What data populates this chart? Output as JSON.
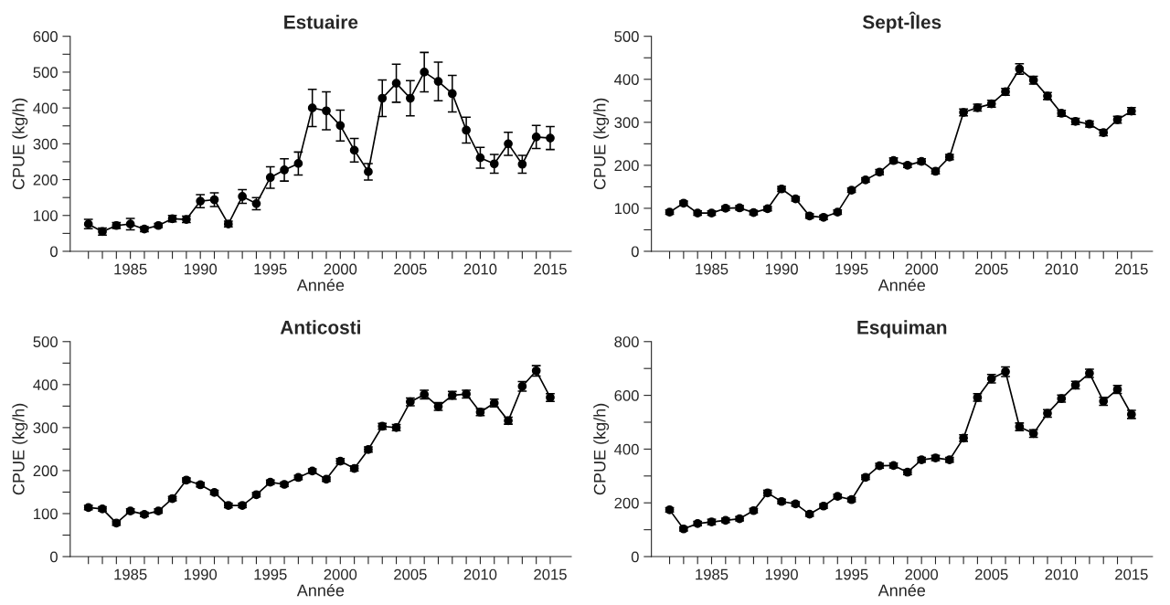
{
  "chart_data": [
    {
      "type": "line",
      "title": "Estuaire",
      "xlabel": "Année",
      "ylabel": "CPUE (kg/h)",
      "marker": "circle",
      "grid": false,
      "x": [
        1982,
        1983,
        1984,
        1985,
        1986,
        1987,
        1988,
        1989,
        1990,
        1991,
        1992,
        1993,
        1994,
        1995,
        1996,
        1997,
        1998,
        1999,
        2000,
        2001,
        2002,
        2003,
        2004,
        2005,
        2006,
        2007,
        2008,
        2009,
        2010,
        2011,
        2012,
        2013,
        2014,
        2015
      ],
      "series": [
        {
          "color": "#000000",
          "values": [
            76,
            55,
            72,
            76,
            62,
            72,
            91,
            89,
            140,
            144,
            76,
            153,
            133,
            206,
            227,
            245,
            400,
            392,
            351,
            282,
            222,
            427,
            469,
            427,
            500,
            474,
            440,
            338,
            261,
            244,
            300,
            243,
            319,
            316
          ],
          "errors": [
            13,
            10,
            8,
            16,
            7,
            6,
            9,
            9,
            18,
            19,
            8,
            19,
            17,
            30,
            31,
            32,
            52,
            53,
            43,
            33,
            23,
            51,
            53,
            49,
            55,
            54,
            51,
            36,
            29,
            26,
            32,
            25,
            32,
            32
          ]
        }
      ],
      "xlim": [
        1980.7,
        2016.5
      ],
      "xticks": [
        {
          "value": 1982,
          "label": null
        },
        {
          "value": 1983,
          "label": null
        },
        {
          "value": 1984,
          "label": null
        },
        1985,
        {
          "value": 1986,
          "label": null
        },
        {
          "value": 1987,
          "label": null
        },
        {
          "value": 1988,
          "label": null
        },
        {
          "value": 1989,
          "label": null
        },
        1990,
        {
          "value": 1991,
          "label": null
        },
        {
          "value": 1992,
          "label": null
        },
        {
          "value": 1993,
          "label": null
        },
        {
          "value": 1994,
          "label": null
        },
        1995,
        {
          "value": 1996,
          "label": null
        },
        {
          "value": 1997,
          "label": null
        },
        {
          "value": 1998,
          "label": null
        },
        {
          "value": 1999,
          "label": null
        },
        2000,
        {
          "value": 2001,
          "label": null
        },
        {
          "value": 2002,
          "label": null
        },
        {
          "value": 2003,
          "label": null
        },
        {
          "value": 2004,
          "label": null
        },
        2005,
        {
          "value": 2006,
          "label": null
        },
        {
          "value": 2007,
          "label": null
        },
        {
          "value": 2008,
          "label": null
        },
        {
          "value": 2009,
          "label": null
        },
        2010,
        {
          "value": 2011,
          "label": null
        },
        {
          "value": 2012,
          "label": null
        },
        {
          "value": 2013,
          "label": null
        },
        {
          "value": 2014,
          "label": null
        },
        2015
      ],
      "ylim": [
        0,
        600
      ],
      "yticks": [
        0,
        {
          "value": 50,
          "label": null
        },
        100,
        {
          "value": 150,
          "label": null
        },
        200,
        {
          "value": 250,
          "label": null
        },
        300,
        {
          "value": 350,
          "label": null
        },
        400,
        {
          "value": 450,
          "label": null
        },
        500,
        {
          "value": 550,
          "label": null
        },
        600
      ]
    },
    {
      "type": "line",
      "title": "Sept-Îles",
      "xlabel": "Année",
      "ylabel": "CPUE (kg/h)",
      "marker": "circle",
      "grid": false,
      "x": [
        1982,
        1983,
        1984,
        1985,
        1986,
        1987,
        1988,
        1989,
        1990,
        1991,
        1992,
        1993,
        1994,
        1995,
        1996,
        1997,
        1998,
        1999,
        2000,
        2001,
        2002,
        2003,
        2004,
        2005,
        2006,
        2007,
        2008,
        2009,
        2010,
        2011,
        2012,
        2013,
        2014,
        2015
      ],
      "series": [
        {
          "color": "#000000",
          "values": [
            91,
            112,
            89,
            89,
            100,
            101,
            90,
            99,
            145,
            122,
            82,
            79,
            91,
            142,
            166,
            184,
            211,
            200,
            209,
            186,
            219,
            323,
            334,
            343,
            371,
            424,
            398,
            361,
            321,
            302,
            296,
            276,
            306,
            326
          ],
          "errors": [
            5,
            5,
            5,
            5,
            5,
            5,
            5,
            5,
            6,
            5,
            5,
            5,
            5,
            5,
            5,
            6,
            6,
            5,
            6,
            6,
            6,
            8,
            8,
            8,
            8,
            12,
            9,
            8,
            7,
            7,
            7,
            7,
            8,
            8
          ]
        }
      ],
      "xlim": [
        1980.7,
        2016.5
      ],
      "xticks": [
        {
          "value": 1982,
          "label": null
        },
        {
          "value": 1983,
          "label": null
        },
        {
          "value": 1984,
          "label": null
        },
        1985,
        {
          "value": 1986,
          "label": null
        },
        {
          "value": 1987,
          "label": null
        },
        {
          "value": 1988,
          "label": null
        },
        {
          "value": 1989,
          "label": null
        },
        1990,
        {
          "value": 1991,
          "label": null
        },
        {
          "value": 1992,
          "label": null
        },
        {
          "value": 1993,
          "label": null
        },
        {
          "value": 1994,
          "label": null
        },
        1995,
        {
          "value": 1996,
          "label": null
        },
        {
          "value": 1997,
          "label": null
        },
        {
          "value": 1998,
          "label": null
        },
        {
          "value": 1999,
          "label": null
        },
        2000,
        {
          "value": 2001,
          "label": null
        },
        {
          "value": 2002,
          "label": null
        },
        {
          "value": 2003,
          "label": null
        },
        {
          "value": 2004,
          "label": null
        },
        2005,
        {
          "value": 2006,
          "label": null
        },
        {
          "value": 2007,
          "label": null
        },
        {
          "value": 2008,
          "label": null
        },
        {
          "value": 2009,
          "label": null
        },
        2010,
        {
          "value": 2011,
          "label": null
        },
        {
          "value": 2012,
          "label": null
        },
        {
          "value": 2013,
          "label": null
        },
        {
          "value": 2014,
          "label": null
        },
        2015
      ],
      "ylim": [
        0,
        500
      ],
      "yticks": [
        0,
        {
          "value": 50,
          "label": null
        },
        100,
        {
          "value": 150,
          "label": null
        },
        200,
        {
          "value": 250,
          "label": null
        },
        300,
        {
          "value": 350,
          "label": null
        },
        400,
        {
          "value": 450,
          "label": null
        },
        500
      ]
    },
    {
      "type": "line",
      "title": "Anticosti",
      "xlabel": "Année",
      "ylabel": "CPUE (kg/h)",
      "marker": "circle",
      "grid": false,
      "x": [
        1982,
        1983,
        1984,
        1985,
        1986,
        1987,
        1988,
        1989,
        1990,
        1991,
        1992,
        1993,
        1994,
        1995,
        1996,
        1997,
        1998,
        1999,
        2000,
        2001,
        2002,
        2003,
        2004,
        2005,
        2006,
        2007,
        2008,
        2009,
        2010,
        2011,
        2012,
        2013,
        2014,
        2015
      ],
      "series": [
        {
          "color": "#000000",
          "values": [
            114,
            111,
            78,
            106,
            98,
            106,
            135,
            178,
            167,
            149,
            119,
            119,
            144,
            173,
            168,
            184,
            199,
            180,
            222,
            205,
            249,
            303,
            300,
            360,
            377,
            349,
            375,
            378,
            336,
            357,
            316,
            396,
            432,
            370
          ],
          "errors": [
            5,
            5,
            5,
            5,
            5,
            5,
            5,
            5,
            5,
            5,
            5,
            5,
            5,
            5,
            5,
            5,
            5,
            5,
            6,
            6,
            6,
            7,
            7,
            9,
            10,
            9,
            9,
            9,
            8,
            9,
            8,
            11,
            12,
            9
          ]
        }
      ],
      "xlim": [
        1980.7,
        2016.5
      ],
      "xticks": [
        {
          "value": 1982,
          "label": null
        },
        {
          "value": 1983,
          "label": null
        },
        {
          "value": 1984,
          "label": null
        },
        1985,
        {
          "value": 1986,
          "label": null
        },
        {
          "value": 1987,
          "label": null
        },
        {
          "value": 1988,
          "label": null
        },
        {
          "value": 1989,
          "label": null
        },
        1990,
        {
          "value": 1991,
          "label": null
        },
        {
          "value": 1992,
          "label": null
        },
        {
          "value": 1993,
          "label": null
        },
        {
          "value": 1994,
          "label": null
        },
        1995,
        {
          "value": 1996,
          "label": null
        },
        {
          "value": 1997,
          "label": null
        },
        {
          "value": 1998,
          "label": null
        },
        {
          "value": 1999,
          "label": null
        },
        2000,
        {
          "value": 2001,
          "label": null
        },
        {
          "value": 2002,
          "label": null
        },
        {
          "value": 2003,
          "label": null
        },
        {
          "value": 2004,
          "label": null
        },
        2005,
        {
          "value": 2006,
          "label": null
        },
        {
          "value": 2007,
          "label": null
        },
        {
          "value": 2008,
          "label": null
        },
        {
          "value": 2009,
          "label": null
        },
        2010,
        {
          "value": 2011,
          "label": null
        },
        {
          "value": 2012,
          "label": null
        },
        {
          "value": 2013,
          "label": null
        },
        {
          "value": 2014,
          "label": null
        },
        2015
      ],
      "ylim": [
        0,
        500
      ],
      "yticks": [
        0,
        {
          "value": 50,
          "label": null
        },
        100,
        {
          "value": 150,
          "label": null
        },
        200,
        {
          "value": 250,
          "label": null
        },
        300,
        {
          "value": 350,
          "label": null
        },
        400,
        {
          "value": 450,
          "label": null
        },
        500
      ]
    },
    {
      "type": "line",
      "title": "Esquiman",
      "xlabel": "Année",
      "ylabel": "CPUE (kg/h)",
      "marker": "circle",
      "grid": false,
      "x": [
        1982,
        1983,
        1984,
        1985,
        1986,
        1987,
        1988,
        1989,
        1990,
        1991,
        1992,
        1993,
        1994,
        1995,
        1996,
        1997,
        1998,
        1999,
        2000,
        2001,
        2002,
        2003,
        2004,
        2005,
        2006,
        2007,
        2008,
        2009,
        2010,
        2011,
        2012,
        2013,
        2014,
        2015
      ],
      "series": [
        {
          "color": "#000000",
          "values": [
            174,
            103,
            123,
            129,
            135,
            141,
            171,
            237,
            205,
            196,
            158,
            188,
            224,
            212,
            295,
            338,
            339,
            314,
            360,
            367,
            360,
            441,
            592,
            662,
            688,
            483,
            458,
            533,
            588,
            638,
            682,
            578,
            622,
            529
          ],
          "errors": [
            8,
            8,
            8,
            10,
            8,
            8,
            8,
            10,
            8,
            8,
            8,
            8,
            8,
            8,
            8,
            9,
            9,
            9,
            9,
            10,
            9,
            12,
            14,
            16,
            18,
            14,
            14,
            14,
            13,
            14,
            15,
            15,
            15,
            15
          ]
        }
      ],
      "xlim": [
        1980.7,
        2016.5
      ],
      "xticks": [
        {
          "value": 1982,
          "label": null
        },
        {
          "value": 1983,
          "label": null
        },
        {
          "value": 1984,
          "label": null
        },
        1985,
        {
          "value": 1986,
          "label": null
        },
        {
          "value": 1987,
          "label": null
        },
        {
          "value": 1988,
          "label": null
        },
        {
          "value": 1989,
          "label": null
        },
        1990,
        {
          "value": 1991,
          "label": null
        },
        {
          "value": 1992,
          "label": null
        },
        {
          "value": 1993,
          "label": null
        },
        {
          "value": 1994,
          "label": null
        },
        1995,
        {
          "value": 1996,
          "label": null
        },
        {
          "value": 1997,
          "label": null
        },
        {
          "value": 1998,
          "label": null
        },
        {
          "value": 1999,
          "label": null
        },
        2000,
        {
          "value": 2001,
          "label": null
        },
        {
          "value": 2002,
          "label": null
        },
        {
          "value": 2003,
          "label": null
        },
        {
          "value": 2004,
          "label": null
        },
        2005,
        {
          "value": 2006,
          "label": null
        },
        {
          "value": 2007,
          "label": null
        },
        {
          "value": 2008,
          "label": null
        },
        {
          "value": 2009,
          "label": null
        },
        2010,
        {
          "value": 2011,
          "label": null
        },
        {
          "value": 2012,
          "label": null
        },
        {
          "value": 2013,
          "label": null
        },
        {
          "value": 2014,
          "label": null
        },
        2015
      ],
      "ylim": [
        0,
        800
      ],
      "yticks": [
        0,
        {
          "value": 100,
          "label": null
        },
        200,
        {
          "value": 300,
          "label": null
        },
        400,
        {
          "value": 500,
          "label": null
        },
        600,
        {
          "value": 700,
          "label": null
        },
        800
      ]
    }
  ]
}
